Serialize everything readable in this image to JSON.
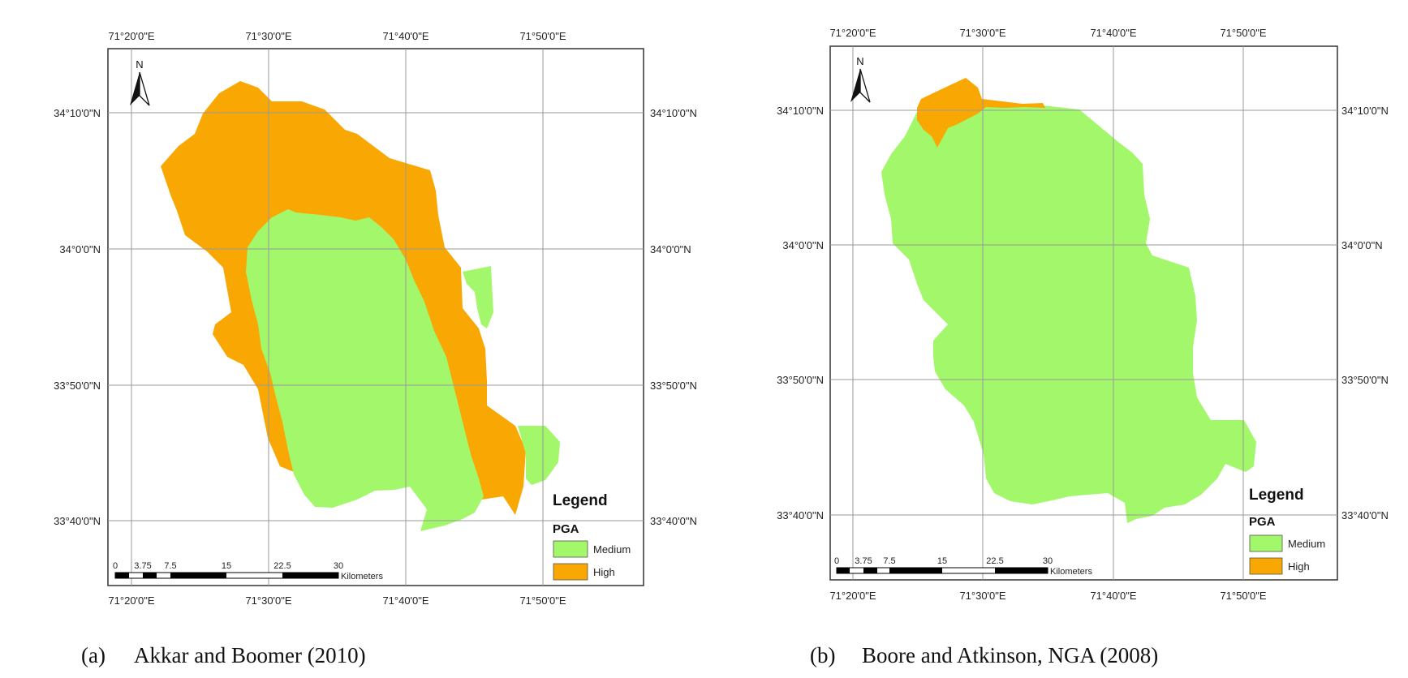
{
  "colors": {
    "medium": "#a3f76a",
    "high": "#f8a703",
    "grid": "#999999",
    "frame": "#333333"
  },
  "icons": {
    "north_arrow": "north-arrow-icon"
  },
  "maps": [
    {
      "panel_label": "(a)",
      "caption": "Akkar and Boomer (2010)",
      "north_label": "N",
      "top_lon_labels": [
        "71°20'0\"E",
        "71°30'0\"E",
        "71°40'0\"E",
        "71°50'0\"E"
      ],
      "bottom_lon_labels": [
        "71°20'0\"E",
        "71°30'0\"E",
        "71°40'0\"E",
        "71°50'0\"E"
      ],
      "left_lat_labels": [
        "34°10'0\"N",
        "34°0'0\"N",
        "33°50'0\"N",
        "33°40'0\"N"
      ],
      "right_lat_labels": [
        "34°10'0\"N",
        "34°0'0\"N",
        "33°50'0\"N",
        "33°40'0\"N"
      ],
      "scale_numbers": [
        "0",
        "3.75",
        "7.5",
        "15",
        "22.5",
        "30"
      ],
      "scale_unit": "Kilometers",
      "legend": {
        "title": "Legend",
        "subtitle": "PGA",
        "items": [
          {
            "label": "Medium",
            "class": "medium"
          },
          {
            "label": "High",
            "class": "high"
          }
        ]
      }
    },
    {
      "panel_label": "(b)",
      "caption": "Boore and Atkinson, NGA (2008)",
      "north_label": "N",
      "top_lon_labels": [
        "71°20'0\"E",
        "71°30'0\"E",
        "71°40'0\"E",
        "71°50'0\"E"
      ],
      "bottom_lon_labels": [
        "71°20'0\"E",
        "71°30'0\"E",
        "71°40'0\"E",
        "71°50'0\"E"
      ],
      "left_lat_labels": [
        "34°10'0\"N",
        "34°0'0\"N",
        "33°50'0\"N",
        "33°40'0\"N"
      ],
      "right_lat_labels": [
        "34°10'0\"N",
        "34°0'0\"N",
        "33°50'0\"N",
        "33°40'0\"N"
      ],
      "scale_numbers": [
        "0",
        "3.75",
        "7.5",
        "15",
        "22.5",
        "30"
      ],
      "scale_unit": "Kilometers",
      "legend": {
        "title": "Legend",
        "subtitle": "PGA",
        "items": [
          {
            "label": "Medium",
            "class": "medium"
          },
          {
            "label": "High",
            "class": "high"
          }
        ]
      }
    }
  ]
}
